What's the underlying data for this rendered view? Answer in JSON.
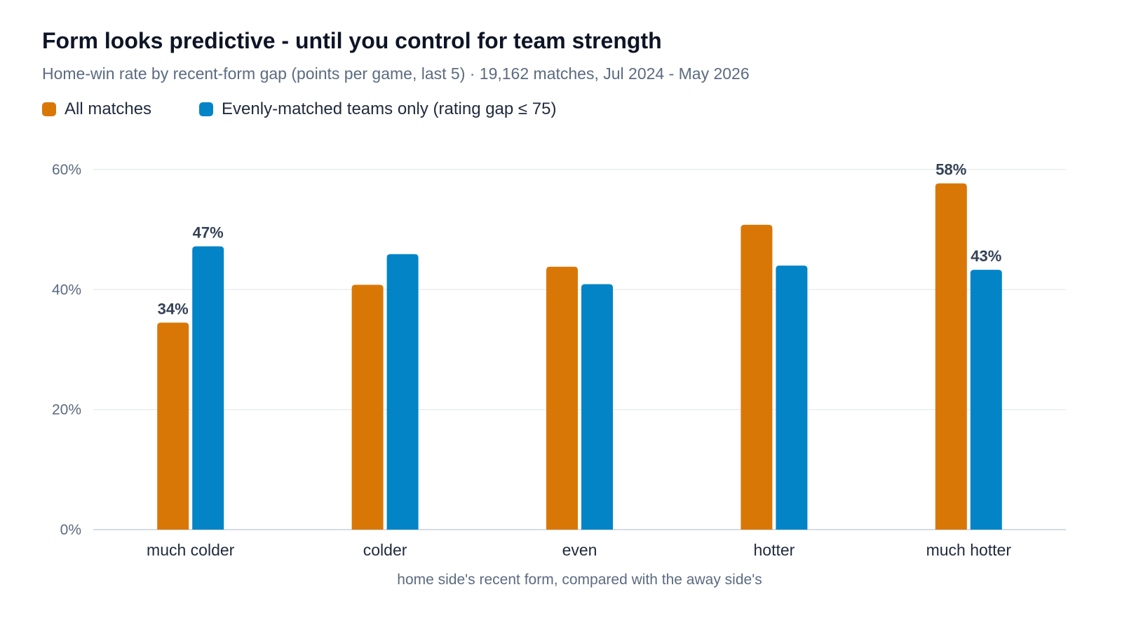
{
  "chart_data": {
    "type": "bar",
    "title": "Form looks predictive - until you control for team strength",
    "subtitle": "Home-win rate by recent-form gap (points per game, last 5) · 19,162 matches, Jul 2024 - May 2026",
    "xlabel": "home side's recent form, compared with the away side's",
    "ylabel": "",
    "ylim": [
      0,
      60
    ],
    "yticks": [
      0,
      20,
      40,
      60
    ],
    "ytick_labels": [
      "0%",
      "20%",
      "40%",
      "60%"
    ],
    "categories": [
      "much colder",
      "colder",
      "even",
      "hotter",
      "much hotter"
    ],
    "series": [
      {
        "name": "All matches",
        "color": "#d97706",
        "values": [
          34.5,
          40.8,
          43.8,
          50.8,
          57.7
        ]
      },
      {
        "name": "Evenly-matched teams only (rating gap ≤ 75)",
        "color": "#0284c7",
        "values": [
          47.2,
          45.9,
          40.9,
          44.0,
          43.3
        ]
      }
    ],
    "data_labels": [
      {
        "series": 0,
        "index": 0,
        "text": "34%"
      },
      {
        "series": 1,
        "index": 0,
        "text": "47%"
      },
      {
        "series": 0,
        "index": 4,
        "text": "58%"
      },
      {
        "series": 1,
        "index": 4,
        "text": "43%"
      }
    ],
    "grid": true,
    "legend_position": "top-left"
  }
}
